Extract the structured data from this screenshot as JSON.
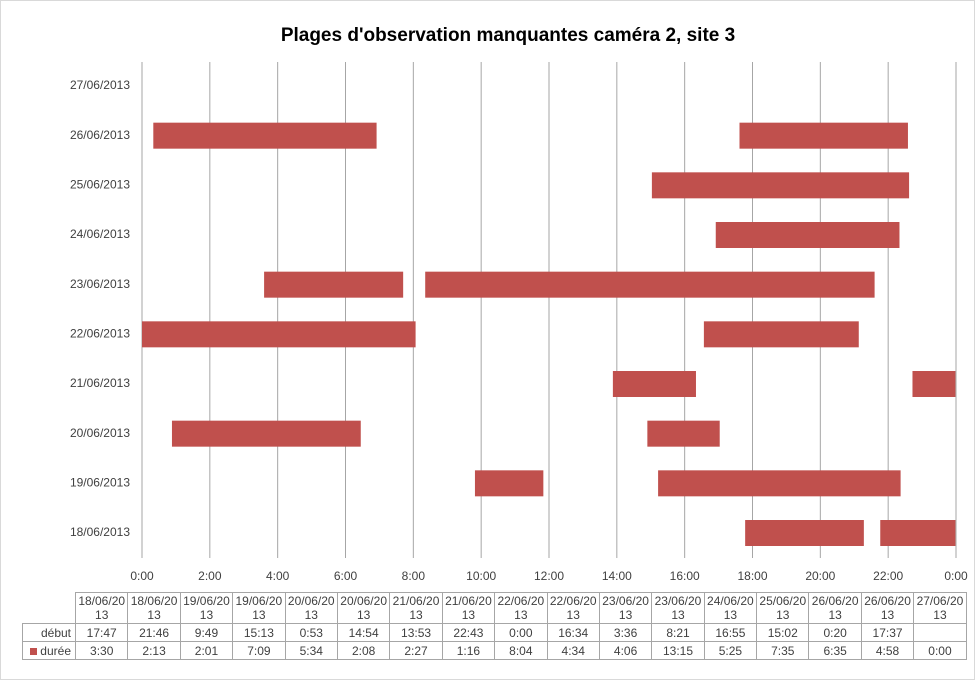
{
  "chart_data": {
    "type": "gantt",
    "title": "Plages d'observation manquantes caméra 2, site 3",
    "y_categories": [
      "18/06/2013",
      "19/06/2013",
      "20/06/2013",
      "21/06/2013",
      "22/06/2013",
      "23/06/2013",
      "24/06/2013",
      "25/06/2013",
      "26/06/2013",
      "27/06/2013"
    ],
    "categories": [
      "18/06/2013",
      "18/06/2013",
      "19/06/2013",
      "19/06/2013",
      "20/06/2013",
      "20/06/2013",
      "21/06/2013",
      "21/06/2013",
      "22/06/2013",
      "22/06/2013",
      "23/06/2013",
      "23/06/2013",
      "24/06/2013",
      "25/06/2013",
      "26/06/2013",
      "26/06/2013",
      "27/06/2013"
    ],
    "series": [
      {
        "name": "début",
        "color": "none",
        "values": [
          1067,
          1306,
          589,
          913,
          53,
          894,
          833,
          1363,
          0,
          994,
          216,
          501,
          1015,
          902,
          20,
          1057,
          null
        ],
        "value_labels": [
          "17:47",
          "21:46",
          "9:49",
          "15:13",
          "0:53",
          "14:54",
          "13:53",
          "22:43",
          "0:00",
          "16:34",
          "3:36",
          "8:21",
          "16:55",
          "15:02",
          "0:20",
          "17:37",
          null
        ]
      },
      {
        "name": "durée",
        "color": "#c0504d",
        "values": [
          210,
          133,
          121,
          429,
          334,
          128,
          147,
          76,
          484,
          274,
          246,
          795,
          325,
          455,
          395,
          298,
          0
        ],
        "value_labels": [
          "3:30",
          "2:13",
          "2:01",
          "7:09",
          "5:34",
          "2:08",
          "2:27",
          "1:16",
          "8:04",
          "4:34",
          "4:06",
          "13:15",
          "5:25",
          "7:35",
          "6:35",
          "4:58",
          "0:00"
        ]
      }
    ],
    "xlim": [
      0,
      1440
    ],
    "xticks": [
      {
        "value": 0,
        "label": "0:00"
      },
      {
        "value": 120,
        "label": "2:00"
      },
      {
        "value": 240,
        "label": "4:00"
      },
      {
        "value": 360,
        "label": "6:00"
      },
      {
        "value": 480,
        "label": "8:00"
      },
      {
        "value": 600,
        "label": "10:00"
      },
      {
        "value": 720,
        "label": "12:00"
      },
      {
        "value": 840,
        "label": "14:00"
      },
      {
        "value": 960,
        "label": "16:00"
      },
      {
        "value": 1080,
        "label": "18:00"
      },
      {
        "value": 1200,
        "label": "20:00"
      },
      {
        "value": 1320,
        "label": "22:00"
      },
      {
        "value": 1440,
        "label": "0:00"
      }
    ],
    "grid": true
  }
}
